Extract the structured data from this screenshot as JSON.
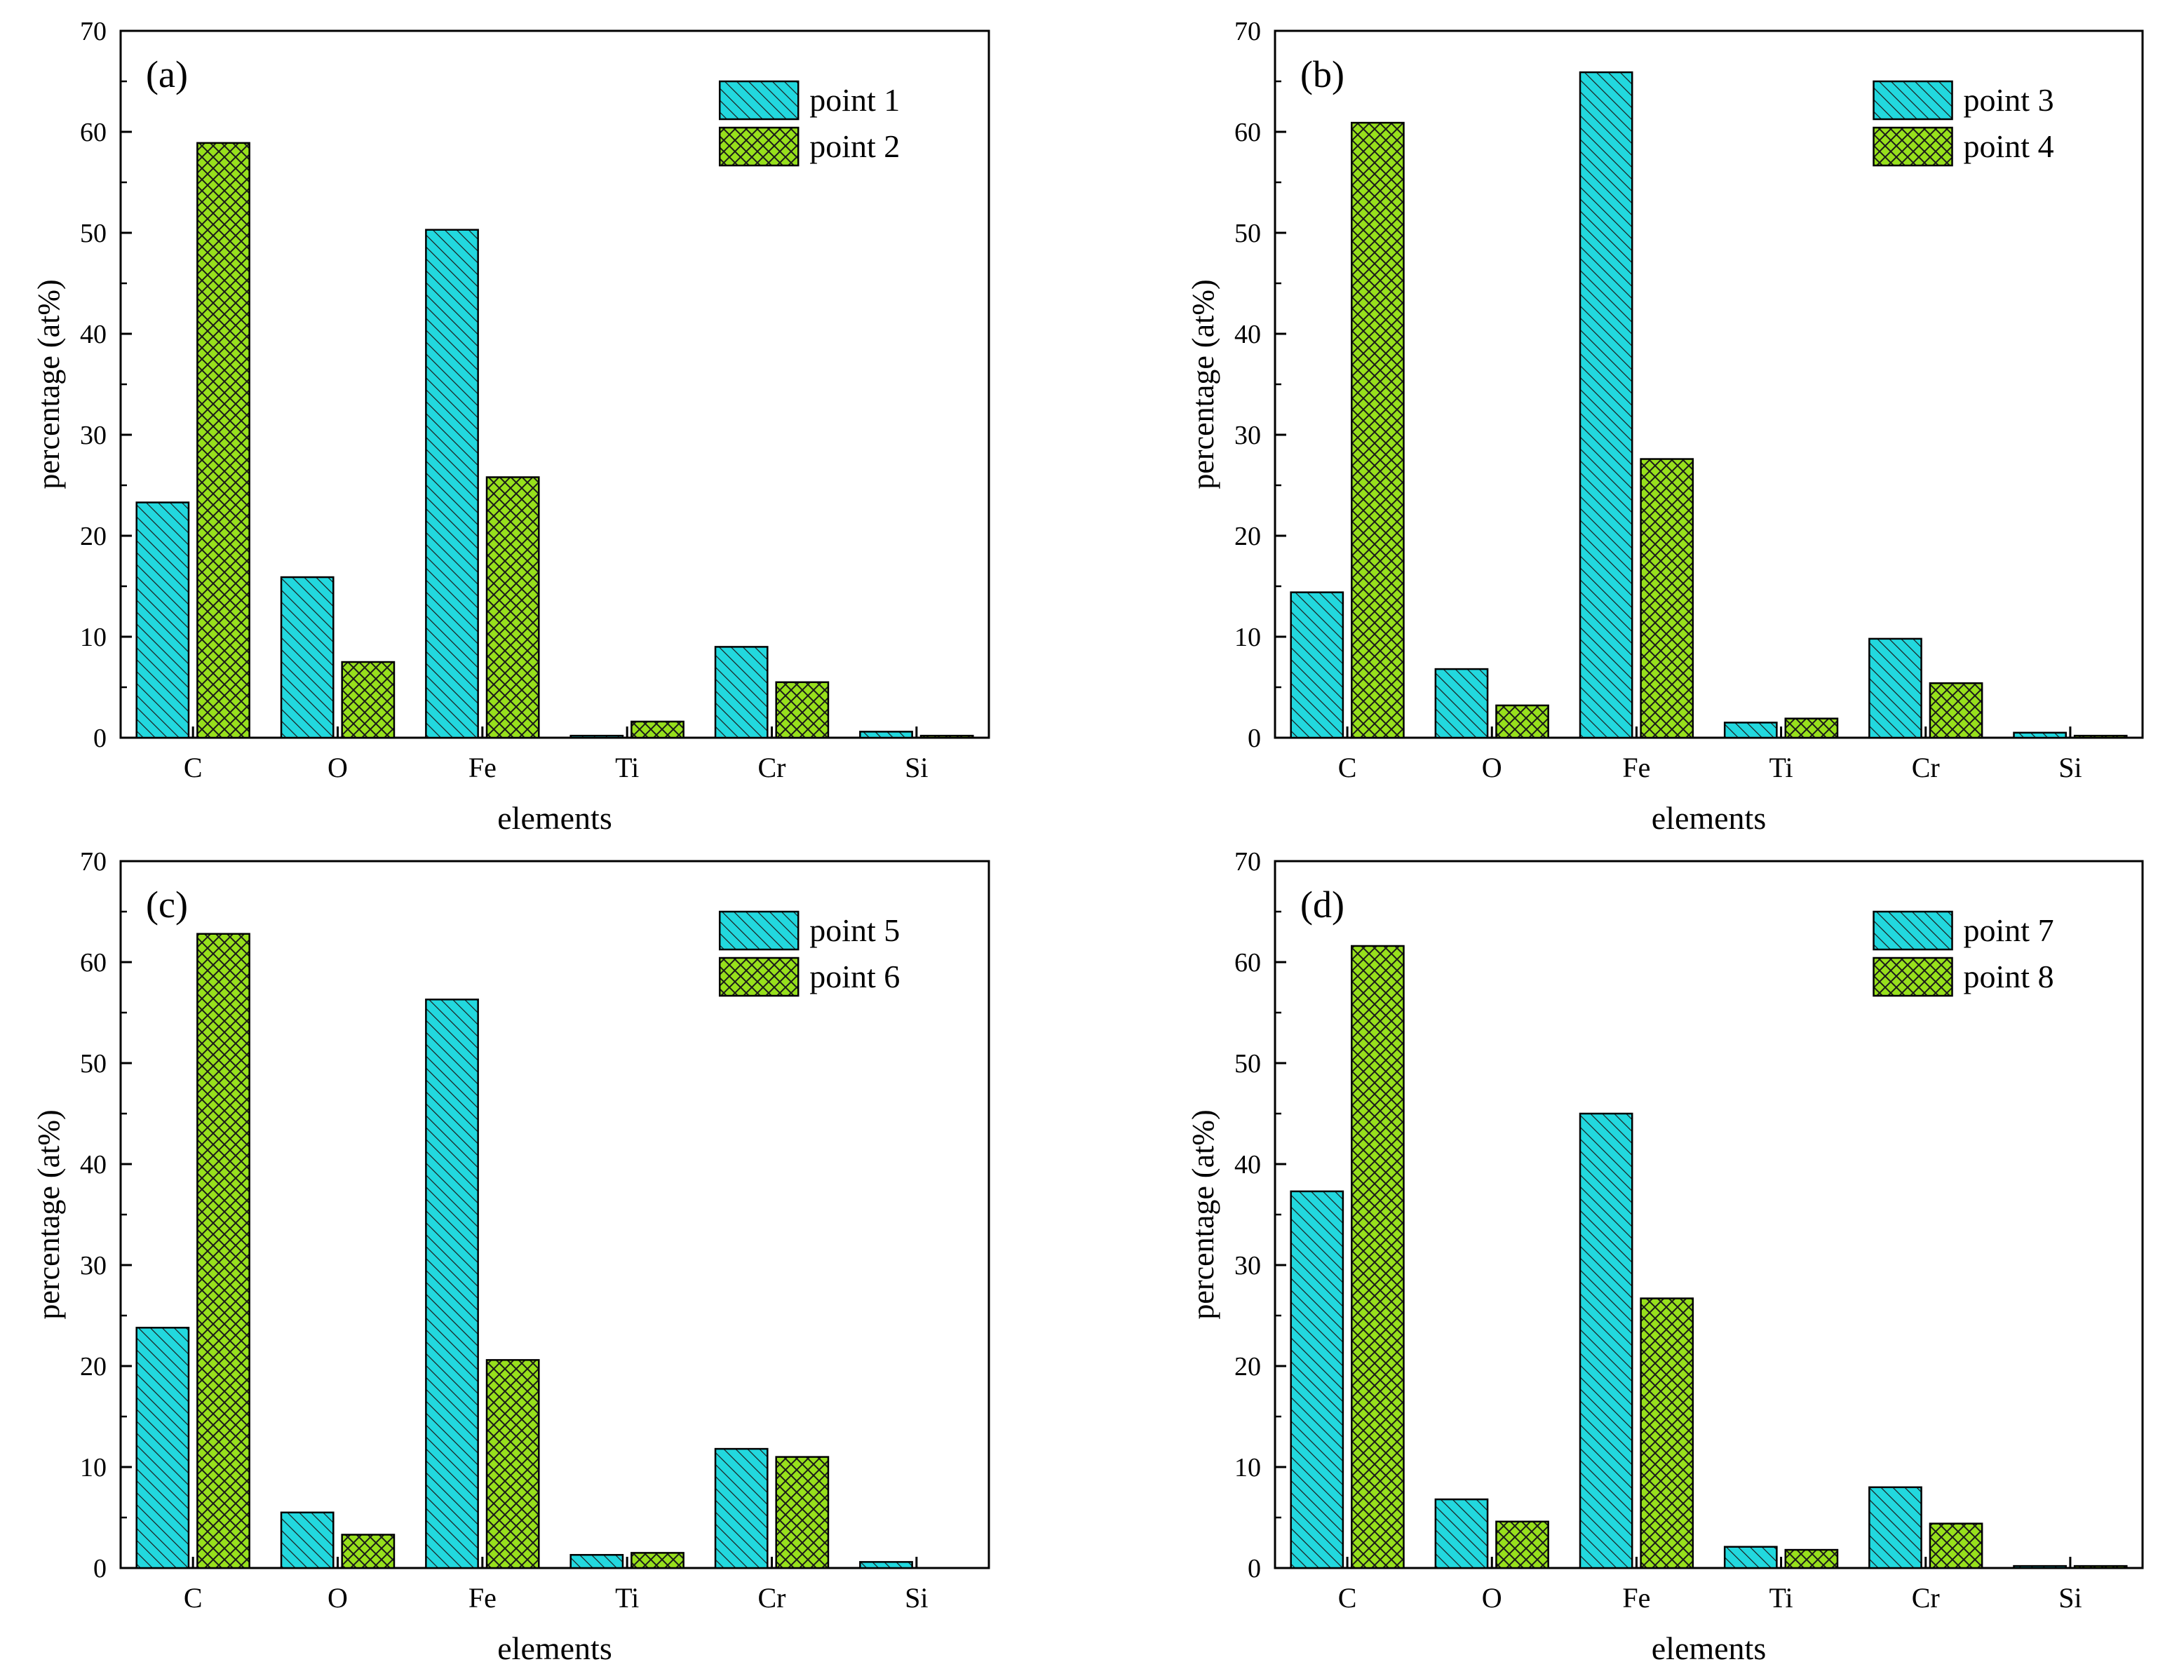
{
  "figure": {
    "bar_colors": {
      "series_a": "#22d8de",
      "series_b": "#97e01c"
    },
    "hatch_color": "#1a1a1a",
    "axis_color": "#000000"
  },
  "chart_data": [
    {
      "type": "bar",
      "panel_label": "(a)",
      "categories": [
        "C",
        "O",
        "Fe",
        "Ti",
        "Cr",
        "Si"
      ],
      "series": [
        {
          "name": "point 1",
          "values": [
            23.3,
            15.9,
            50.3,
            0.2,
            9.0,
            0.6
          ]
        },
        {
          "name": "point 2",
          "values": [
            58.9,
            7.5,
            25.8,
            1.6,
            5.5,
            0.2
          ]
        }
      ],
      "xlabel": "elements",
      "ylabel": "percentage (at%)",
      "ylim": [
        0,
        70
      ],
      "yticks": [
        0,
        10,
        20,
        30,
        40,
        50,
        60,
        70
      ],
      "legend": "top-right",
      "grid": false
    },
    {
      "type": "bar",
      "panel_label": "(b)",
      "categories": [
        "C",
        "O",
        "Fe",
        "Ti",
        "Cr",
        "Si"
      ],
      "series": [
        {
          "name": "point 3",
          "values": [
            14.4,
            6.8,
            65.9,
            1.5,
            9.8,
            0.5
          ]
        },
        {
          "name": "point 4",
          "values": [
            60.9,
            3.2,
            27.6,
            1.9,
            5.4,
            0.2
          ]
        }
      ],
      "xlabel": "elements",
      "ylabel": "percentage (at%)",
      "ylim": [
        0,
        70
      ],
      "yticks": [
        0,
        10,
        20,
        30,
        40,
        50,
        60,
        70
      ],
      "legend": "top-right",
      "grid": false
    },
    {
      "type": "bar",
      "panel_label": "(c)",
      "categories": [
        "C",
        "O",
        "Fe",
        "Ti",
        "Cr",
        "Si"
      ],
      "series": [
        {
          "name": "point 5",
          "values": [
            23.8,
            5.5,
            56.3,
            1.3,
            11.8,
            0.6
          ]
        },
        {
          "name": "point 6",
          "values": [
            62.8,
            3.3,
            20.6,
            1.5,
            11.0,
            0.0
          ]
        }
      ],
      "xlabel": "elements",
      "ylabel": "percentage (at%)",
      "ylim": [
        0,
        70
      ],
      "yticks": [
        0,
        10,
        20,
        30,
        40,
        50,
        60,
        70
      ],
      "legend": "top-right",
      "grid": false
    },
    {
      "type": "bar",
      "panel_label": "(d)",
      "categories": [
        "C",
        "O",
        "Fe",
        "Ti",
        "Cr",
        "Si"
      ],
      "series": [
        {
          "name": "point 7",
          "values": [
            37.3,
            6.8,
            45.0,
            2.1,
            8.0,
            0.2
          ]
        },
        {
          "name": "point 8",
          "values": [
            61.6,
            4.6,
            26.7,
            1.8,
            4.4,
            0.2
          ]
        }
      ],
      "xlabel": "elements",
      "ylabel": "percentage (at%)",
      "ylim": [
        0,
        70
      ],
      "yticks": [
        0,
        10,
        20,
        30,
        40,
        50,
        60,
        70
      ],
      "legend": "top-right",
      "grid": false
    }
  ]
}
